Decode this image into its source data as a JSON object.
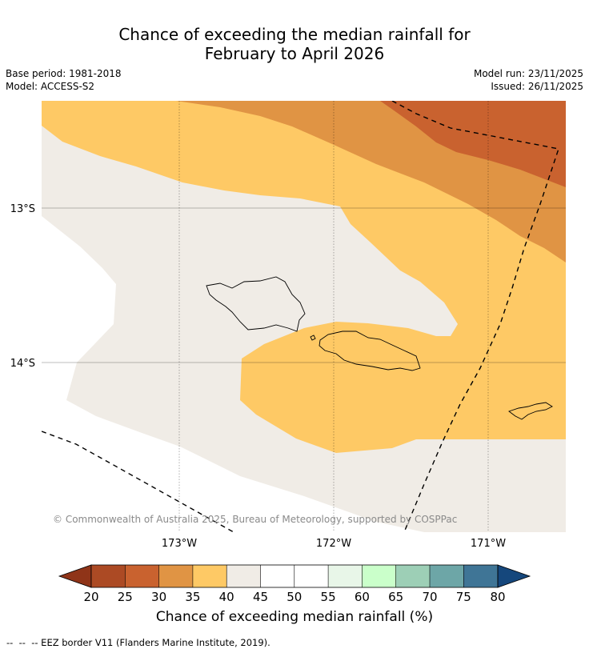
{
  "title": {
    "line1": "Chance of exceeding the median rainfall for",
    "line2": "February to April 2026"
  },
  "meta": {
    "base_period": "Base period: 1981-2018",
    "model": "Model: ACCESS-S2",
    "model_run": "Model run: 23/11/2025",
    "issued": "Issued: 26/11/2025"
  },
  "map": {
    "lat_labels": [
      "13°S",
      "14°S"
    ],
    "lon_labels": [
      "173°W",
      "172°W",
      "171°W"
    ],
    "copyright": "© Commonwealth of Australia 2025, Bureau of Meteorology, supported by COSPPac",
    "colors": {
      "c20_25": "#ac4a24",
      "c25_30": "#c9622f",
      "c30_35": "#e09444",
      "c35_40": "#fec965",
      "c40_45": "#f0ece6",
      "c45_55": "#ffffff",
      "c55_60": "#e8f6e8",
      "c60_65": "#caffca",
      "c65_70": "#9dcfb6",
      "c70_75": "#6da6a7",
      "c75_80": "#3f7596",
      "below20": "#8f3418",
      "above80": "#15477c"
    }
  },
  "colorbar": {
    "ticks": [
      "20",
      "25",
      "30",
      "35",
      "40",
      "45",
      "50",
      "55",
      "60",
      "65",
      "70",
      "75",
      "80"
    ],
    "title": "Chance of exceeding median rainfall (%)"
  },
  "footer": {
    "legend_note": "--  --  -- EEZ border V11 (Flanders Marine Institute, 2019)."
  }
}
